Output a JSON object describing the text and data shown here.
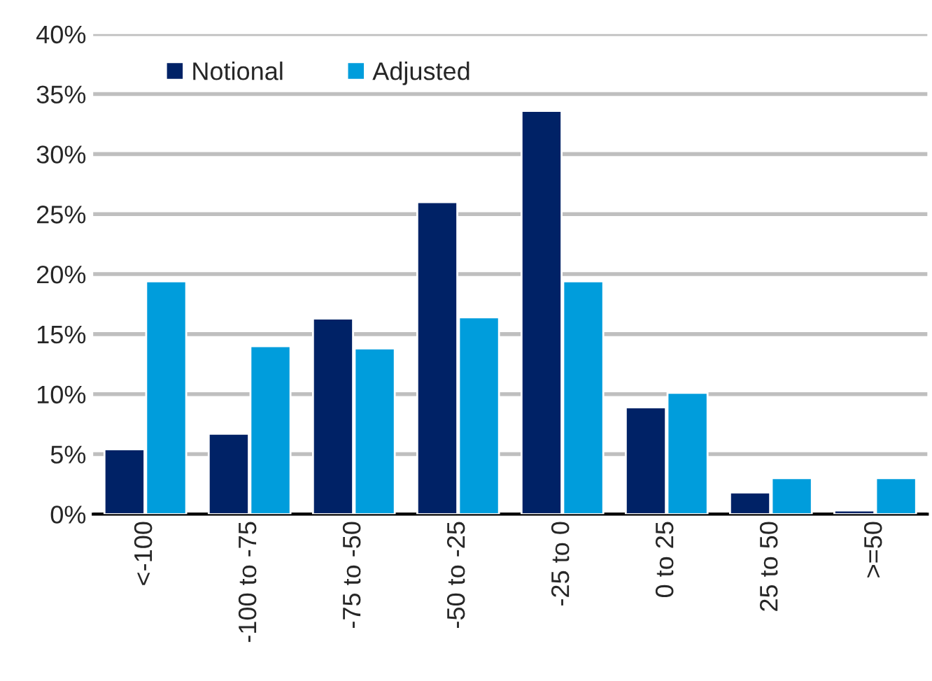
{
  "chart_data": {
    "type": "bar",
    "categories": [
      "<-100",
      "-100 to -75",
      "-75 to -50",
      "-50 to -25",
      "-25 to 0",
      "0 to 25",
      "25 to 50",
      ">=50"
    ],
    "series": [
      {
        "name": "Notional",
        "color": "#002266",
        "values": [
          5.4,
          6.7,
          16.3,
          26.0,
          33.6,
          8.9,
          1.8,
          0.3
        ]
      },
      {
        "name": "Adjusted",
        "color": "#009ddc",
        "values": [
          19.4,
          14.0,
          13.8,
          16.4,
          19.4,
          10.1,
          3.0,
          3.0
        ]
      }
    ],
    "ylim": [
      0,
      40
    ],
    "yticks": [
      {
        "value": 0,
        "label": "0%"
      },
      {
        "value": 5,
        "label": "5%"
      },
      {
        "value": 10,
        "label": "10%"
      },
      {
        "value": 15,
        "label": "15%"
      },
      {
        "value": 20,
        "label": "20%"
      },
      {
        "value": 25,
        "label": "25%"
      },
      {
        "value": 30,
        "label": "30%"
      },
      {
        "value": 35,
        "label": "35%"
      },
      {
        "value": 40,
        "label": "40%"
      }
    ],
    "grid": "y",
    "legend": "top left"
  }
}
